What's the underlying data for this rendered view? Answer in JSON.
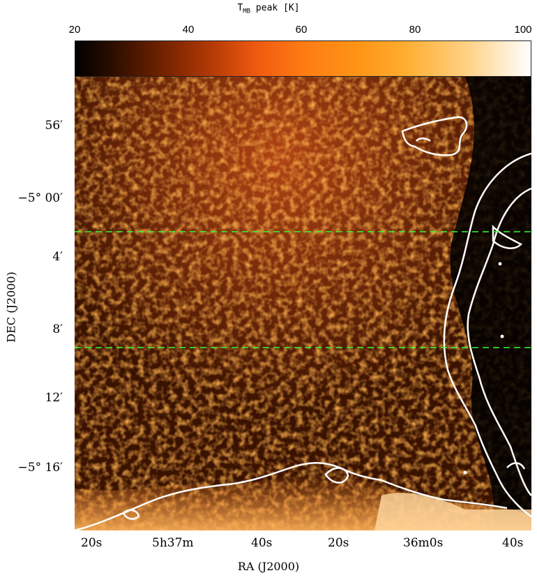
{
  "colorbar": {
    "title_main": "T",
    "title_sub": "MB",
    "title_rest": " peak [K]",
    "ticks": [
      "20",
      "40",
      "60",
      "80",
      "100"
    ],
    "range": [
      20,
      100
    ]
  },
  "axes": {
    "xlabel": "RA (J2000)",
    "ylabel": "DEC (J2000)",
    "yticks": [
      {
        "deg": "56′",
        "label": "56′"
      },
      {
        "label": "−5° 00′"
      },
      {
        "label": "4′"
      },
      {
        "label": "8′"
      },
      {
        "label": "12′"
      },
      {
        "label": "−5° 16′"
      }
    ],
    "xticks": [
      "20s",
      "5h37m",
      "40s",
      "20s",
      "36m0s",
      "40s"
    ]
  },
  "colors": {
    "dashed_lines": "#33ff33",
    "contours": "#ffffff"
  }
}
